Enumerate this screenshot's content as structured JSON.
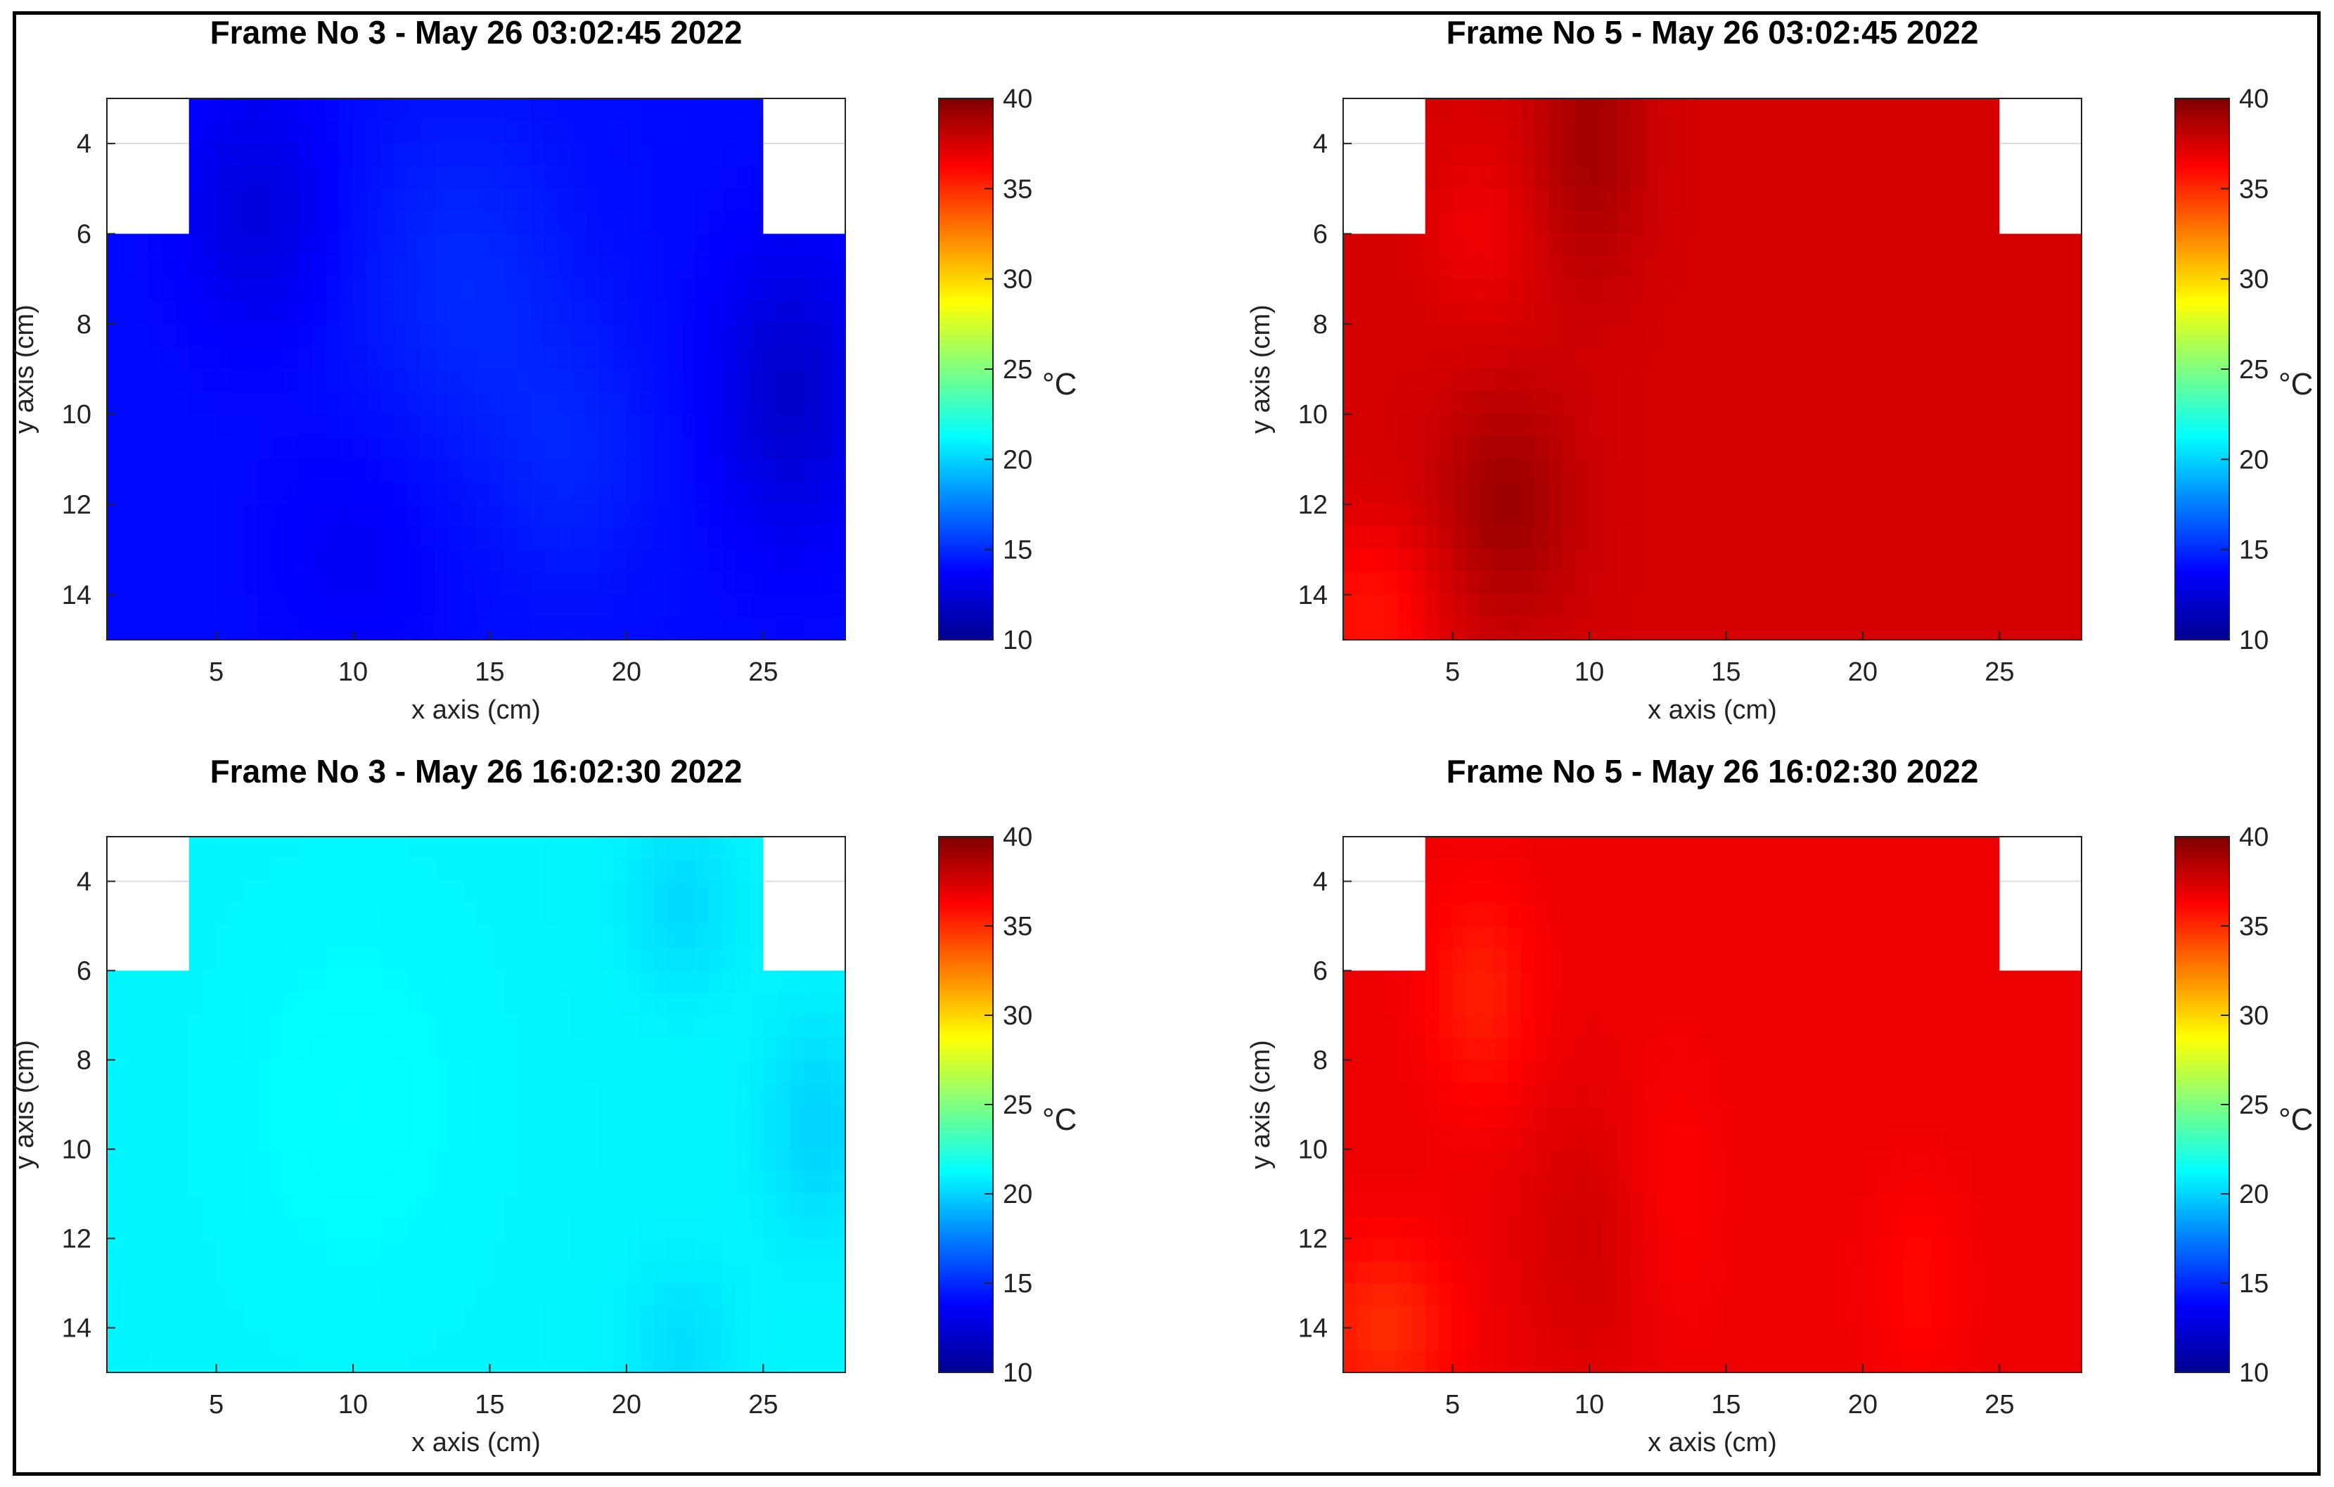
{
  "figure": {
    "colorbar_unit": "°C",
    "colormap": [
      "#00008f",
      "#0000ff",
      "#007fff",
      "#00ffff",
      "#7fff7f",
      "#ffff00",
      "#ff7f00",
      "#ff0000",
      "#7f0000"
    ]
  },
  "chart_data": [
    {
      "type": "heatmap",
      "id": "panel-1",
      "title": "Frame No 3 - May 26 03:02:45 2022",
      "xlabel": "x axis (cm)",
      "ylabel": "y axis (cm)",
      "xlim": [
        1,
        28
      ],
      "ylim": [
        3,
        15
      ],
      "y_reversed": true,
      "x_ticks": [
        5,
        10,
        15,
        20,
        25
      ],
      "y_ticks": [
        4,
        6,
        8,
        10,
        12,
        14
      ],
      "colorbar": {
        "range": [
          10,
          40
        ],
        "ticks": [
          10,
          15,
          20,
          25,
          30,
          35,
          40
        ],
        "unit": "°C"
      },
      "masked_regions": [
        {
          "x": [
            1,
            4
          ],
          "y": [
            3,
            6
          ]
        },
        {
          "x": [
            25,
            28
          ],
          "y": [
            3,
            6
          ]
        }
      ],
      "base_temperature": 14.0,
      "variation": [
        {
          "x": 6.5,
          "y": 5.5,
          "dT": -1.4,
          "sx": 2.5,
          "sy": 2.5
        },
        {
          "x": 26,
          "y": 9.5,
          "dT": -2.0,
          "sx": 2.5,
          "sy": 3.0
        },
        {
          "x": 14,
          "y": 7,
          "dT": 0.9,
          "sx": 4.0,
          "sy": 4.0
        },
        {
          "x": 18,
          "y": 11,
          "dT": 0.7,
          "sx": 3.0,
          "sy": 3.0
        },
        {
          "x": 10,
          "y": 13,
          "dT": -0.5,
          "sx": 3.0,
          "sy": 2.5
        }
      ]
    },
    {
      "type": "heatmap",
      "id": "panel-2",
      "title": "Frame No 5 - May 26 03:02:45 2022",
      "xlabel": "x axis (cm)",
      "ylabel": "y axis (cm)",
      "xlim": [
        1,
        28
      ],
      "ylim": [
        3,
        15
      ],
      "y_reversed": true,
      "x_ticks": [
        5,
        10,
        15,
        20,
        25
      ],
      "y_ticks": [
        4,
        6,
        8,
        10,
        12,
        14
      ],
      "colorbar": {
        "range": [
          10,
          40
        ],
        "ticks": [
          10,
          15,
          20,
          25,
          30,
          35,
          40
        ],
        "unit": "°C"
      },
      "masked_regions": [
        {
          "x": [
            1,
            4
          ],
          "y": [
            3,
            6
          ]
        },
        {
          "x": [
            25,
            28
          ],
          "y": [
            3,
            6
          ]
        }
      ],
      "base_temperature": 37.5,
      "variation": [
        {
          "x": 10,
          "y": 4,
          "dT": 1.4,
          "sx": 2.0,
          "sy": 3.0
        },
        {
          "x": 7,
          "y": 12,
          "dT": 1.6,
          "sx": 2.5,
          "sy": 2.5
        },
        {
          "x": 2,
          "y": 14.5,
          "dT": -1.8,
          "sx": 2.5,
          "sy": 2.0
        },
        {
          "x": 6,
          "y": 6,
          "dT": -0.8,
          "sx": 2.0,
          "sy": 2.0
        }
      ]
    },
    {
      "type": "heatmap",
      "id": "panel-3",
      "title": "Frame No 3 - May 26 16:02:30 2022",
      "xlabel": "x axis (cm)",
      "ylabel": "y axis (cm)",
      "xlim": [
        1,
        28
      ],
      "ylim": [
        3,
        15
      ],
      "y_reversed": true,
      "x_ticks": [
        5,
        10,
        15,
        20,
        25
      ],
      "y_ticks": [
        4,
        6,
        8,
        10,
        12,
        14
      ],
      "colorbar": {
        "range": [
          10,
          40
        ],
        "ticks": [
          10,
          15,
          20,
          25,
          30,
          35,
          40
        ],
        "unit": "°C"
      },
      "masked_regions": [
        {
          "x": [
            1,
            4
          ],
          "y": [
            3,
            6
          ]
        },
        {
          "x": [
            25,
            28
          ],
          "y": [
            3,
            6
          ]
        }
      ],
      "base_temperature": 21.0,
      "variation": [
        {
          "x": 22,
          "y": 4.5,
          "dT": -0.8,
          "sx": 2.0,
          "sy": 2.0
        },
        {
          "x": 27,
          "y": 9.5,
          "dT": -1.0,
          "sx": 2.0,
          "sy": 2.5
        },
        {
          "x": 22,
          "y": 14.5,
          "dT": -0.7,
          "sx": 2.0,
          "sy": 2.0
        },
        {
          "x": 10,
          "y": 9,
          "dT": 0.3,
          "sx": 4.0,
          "sy": 4.0
        }
      ]
    },
    {
      "type": "heatmap",
      "id": "panel-4",
      "title": "Frame No 5 - May 26 16:02:30 2022",
      "xlabel": "x axis (cm)",
      "ylabel": "y axis (cm)",
      "xlim": [
        1,
        28
      ],
      "ylim": [
        3,
        15
      ],
      "y_reversed": true,
      "x_ticks": [
        5,
        10,
        15,
        20,
        25
      ],
      "y_ticks": [
        4,
        6,
        8,
        10,
        12,
        14
      ],
      "colorbar": {
        "range": [
          10,
          40
        ],
        "ticks": [
          10,
          15,
          20,
          25,
          30,
          35,
          40
        ],
        "unit": "°C"
      },
      "masked_regions": [
        {
          "x": [
            1,
            4
          ],
          "y": [
            3,
            6
          ]
        },
        {
          "x": [
            25,
            28
          ],
          "y": [
            3,
            6
          ]
        }
      ],
      "base_temperature": 36.8,
      "variation": [
        {
          "x": 6,
          "y": 6.5,
          "dT": -1.4,
          "sx": 2.0,
          "sy": 2.5
        },
        {
          "x": 2.5,
          "y": 14,
          "dT": -1.8,
          "sx": 2.5,
          "sy": 2.0
        },
        {
          "x": 13,
          "y": 11,
          "dT": -0.6,
          "sx": 2.0,
          "sy": 3.0
        },
        {
          "x": 22,
          "y": 13,
          "dT": -0.7,
          "sx": 2.0,
          "sy": 2.5
        },
        {
          "x": 10,
          "y": 12,
          "dT": 0.8,
          "sx": 2.5,
          "sy": 3.0
        }
      ]
    }
  ]
}
